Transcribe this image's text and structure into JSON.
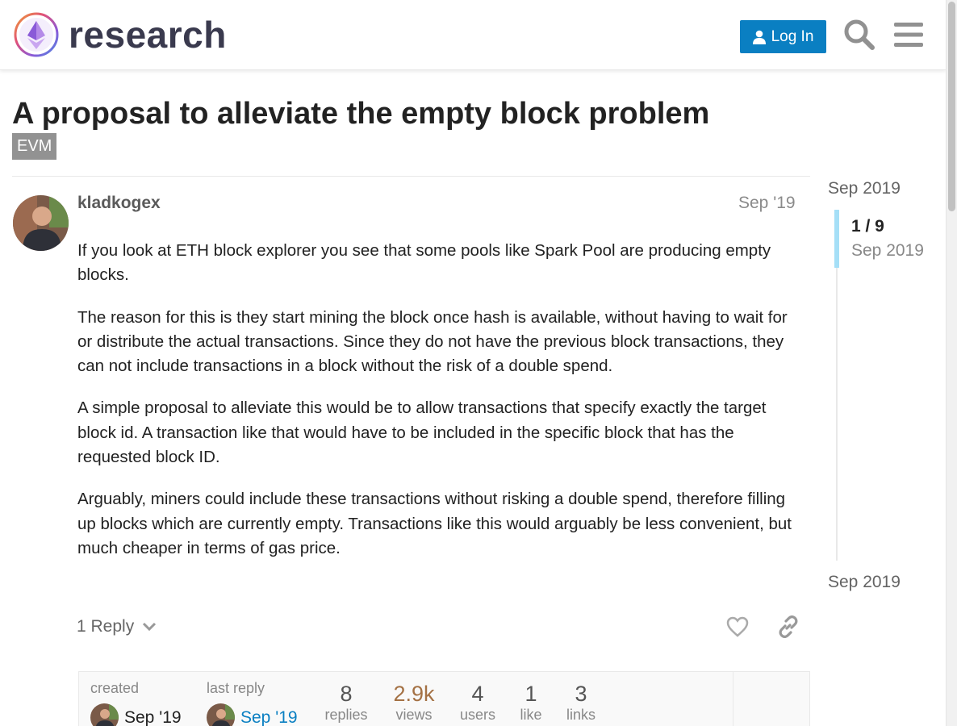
{
  "header": {
    "brand": "research",
    "login_label": "Log In",
    "icons": {
      "login": "user-icon",
      "search": "search-icon",
      "menu": "hamburger-menu-icon"
    },
    "colors": {
      "accent": "#0a7fc2"
    }
  },
  "topic": {
    "title": "A proposal to alleviate the empty block problem",
    "tag": "EVM"
  },
  "post": {
    "username": "kladkogex",
    "date": "Sep '19",
    "paragraphs": [
      "If you look at ETH block explorer you see that some pools like Spark Pool are producing empty blocks.",
      "The reason for this is they start mining the block once hash is available, without having to wait for or distribute the actual transactions. Since they do not have the previous block transactions, they can not include transactions in a block without the risk of a double spend.",
      "A simple proposal to alleviate this would be to allow transactions that specify exactly the target block id. A transaction like that would have to be included in the specific block that has the requested block ID.",
      "Arguably, miners could include these transactions without risking a double spend, therefore filling up blocks which are currently empty. Transactions like this would arguably be less convenient, but much cheaper in terms of gas price."
    ],
    "reply_toggle_label": "1 Reply"
  },
  "topic_map": {
    "created_label": "created",
    "created_date": "Sep '19",
    "last_reply_label": "last reply",
    "last_reply_date": "Sep '19",
    "stats": [
      {
        "value": "8",
        "label": "replies"
      },
      {
        "value": "2.9k",
        "label": "views"
      },
      {
        "value": "4",
        "label": "users"
      },
      {
        "value": "1",
        "label": "like"
      },
      {
        "value": "3",
        "label": "links"
      }
    ]
  },
  "timeline": {
    "top_date": "Sep 2019",
    "position": "1 / 9",
    "position_date": "Sep 2019",
    "bottom_date": "Sep 2019"
  }
}
